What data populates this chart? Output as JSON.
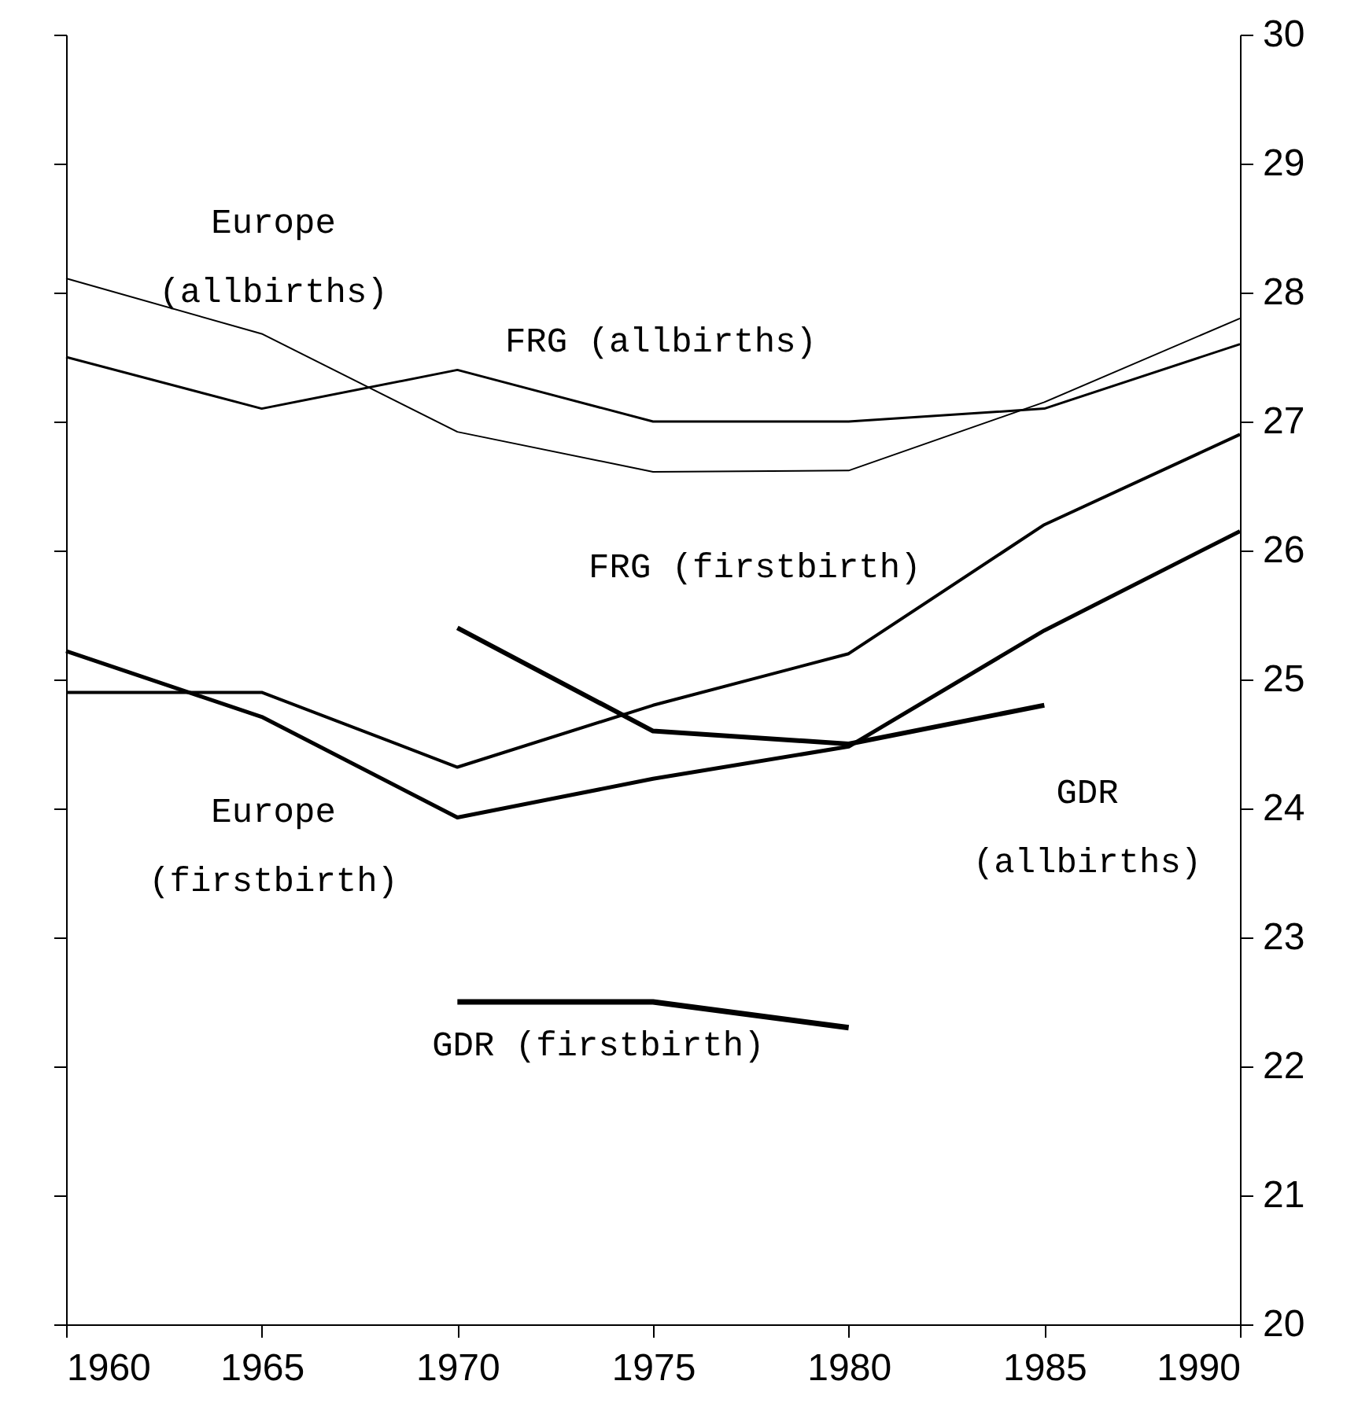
{
  "chart_data": {
    "type": "line",
    "x": [
      1960,
      1965,
      1970,
      1975,
      1980,
      1985,
      1990
    ],
    "xlim": [
      1960,
      1990
    ],
    "xticks": [
      1960,
      1965,
      1970,
      1975,
      1980,
      1985,
      1990
    ],
    "ylim": [
      20,
      30
    ],
    "yticks": [
      20,
      21,
      22,
      23,
      24,
      25,
      26,
      27,
      28,
      29,
      30
    ],
    "grid": false,
    "legend": false,
    "series": [
      {
        "name": "Europe\n(allbirths)",
        "color": "#000000",
        "values": [
          28.11,
          27.68,
          26.92,
          26.61,
          26.62,
          27.15,
          27.8
        ]
      },
      {
        "name": "FRG (allbirths)",
        "color": "#000000",
        "values": [
          27.5,
          27.1,
          27.4,
          27.0,
          27.0,
          27.1,
          27.6
        ]
      },
      {
        "name": "FRG (firstbirth)",
        "color": "#000000",
        "values": [
          24.9,
          24.9,
          24.32,
          24.8,
          25.2,
          26.2,
          26.9
        ]
      },
      {
        "name": "Europe\n(firstbirth)",
        "color": "#000000",
        "values": [
          25.22,
          24.71,
          23.93,
          24.23,
          24.48,
          25.38,
          26.15
        ]
      },
      {
        "name": "GDR\n(allbirths)",
        "color": "#000000",
        "x": [
          1970,
          1975,
          1980,
          1985
        ],
        "values": [
          25.4,
          24.6,
          24.5,
          24.8
        ]
      },
      {
        "name": "GDR (firstbirth)",
        "color": "#000000",
        "x": [
          1970,
          1975,
          1980
        ],
        "values": [
          22.5,
          22.5,
          22.3
        ]
      }
    ]
  }
}
